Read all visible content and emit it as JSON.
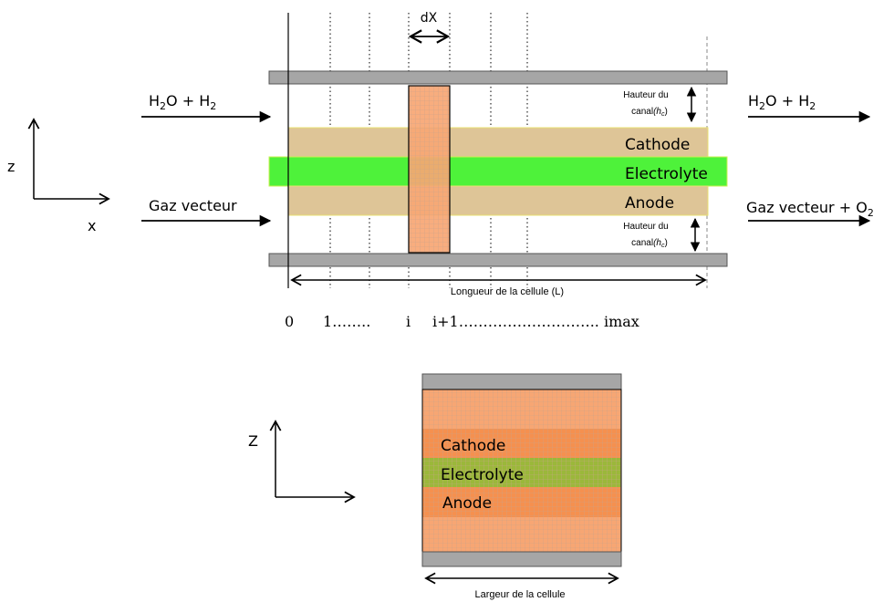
{
  "top_view": {
    "inlet_cathode": {
      "base1": "H",
      "sub1": "2",
      "base2": "O + H",
      "sub2": "2"
    },
    "outlet_cathode": {
      "base1": "H",
      "sub1": "2",
      "base2": "O + H",
      "sub2": "2"
    },
    "inlet_anode": "Gaz vecteur",
    "outlet_anode": {
      "base": "Gaz vecteur + O",
      "sub": "2"
    },
    "axis_z": "z",
    "axis_x": "x",
    "dx_label": "dX",
    "channel_height_top": {
      "line1": "Hauteur du",
      "line2_prefix": "canal",
      "line2_var": "(h",
      "line2_sub": "c",
      "line2_end": ")"
    },
    "channel_height_bottom": {
      "line1": "Hauteur du",
      "line2_prefix": "canal",
      "line2_var": "(h",
      "line2_sub": "c",
      "line2_end": ")"
    },
    "layers": {
      "cathode": "Cathode",
      "electrolyte": "Electrolyte",
      "anode": "Anode"
    },
    "length_label": "Longueur de la cellule (L)",
    "index_labels": [
      "0",
      "1……..",
      "i",
      "i+1……………………….. imax"
    ]
  },
  "cross_section": {
    "axis_z": "Z",
    "layers": {
      "cathode": "Cathode",
      "electrolyte": "Electrolyte",
      "anode": "Anode"
    },
    "width_label": "Largeur de la cellule"
  },
  "colors": {
    "plate": "#a6a6a6",
    "electrode": "#dec597",
    "electrolyte": "#4ef23a",
    "slice": "#f7a673",
    "electrolyte_section": "#9bb83a",
    "electrode_section": "#f5904f"
  }
}
